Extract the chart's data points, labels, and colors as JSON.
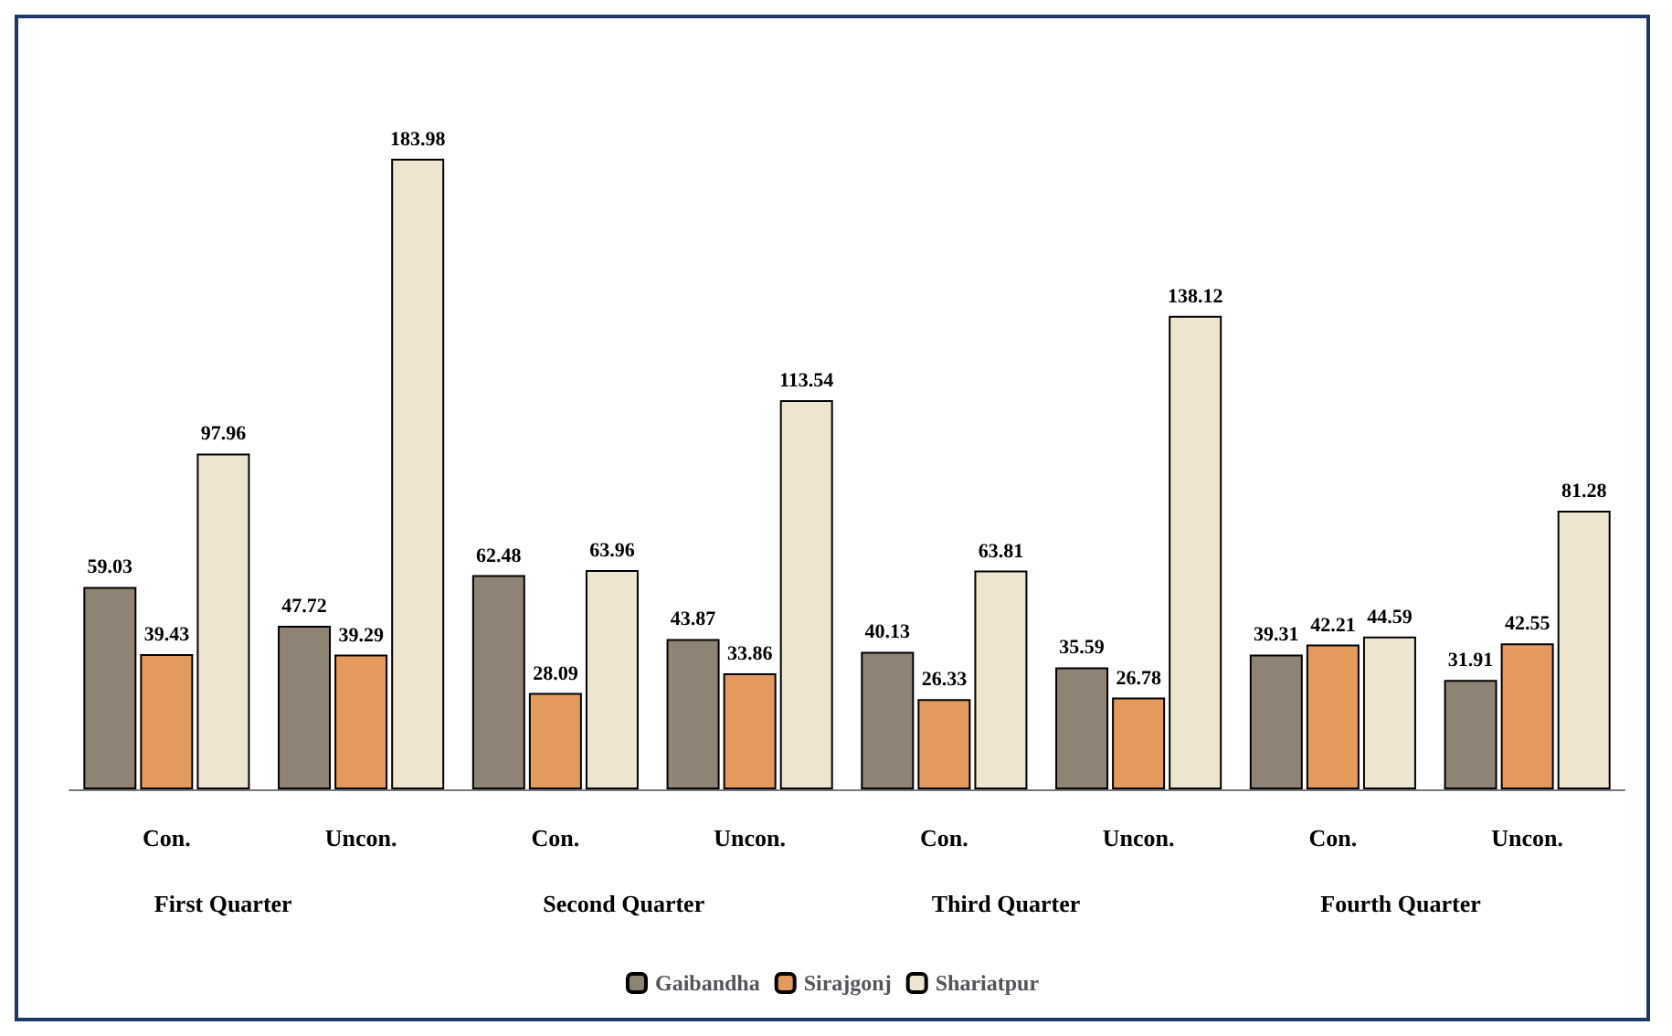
{
  "chart_data": {
    "type": "bar",
    "categories": [
      "Con.",
      "Uncon.",
      "Con.",
      "Uncon.",
      "Con.",
      "Uncon.",
      "Con.",
      "Uncon."
    ],
    "series": [
      {
        "name": "Gaibandha",
        "color": "#8e8374",
        "values": [
          59.03,
          47.72,
          62.48,
          43.87,
          40.13,
          35.59,
          39.31,
          31.91
        ]
      },
      {
        "name": "Sirajgonj",
        "color": "#e39a5c",
        "values": [
          39.43,
          39.29,
          28.09,
          33.86,
          26.33,
          26.78,
          42.21,
          42.55
        ]
      },
      {
        "name": "Shariatpur",
        "color": "#ede5cf",
        "values": [
          97.96,
          183.98,
          63.96,
          113.54,
          63.81,
          138.12,
          44.59,
          81.28
        ]
      }
    ],
    "annotations": [
      "First Quarter",
      "Second Quarter",
      "Third Quarter",
      "Fourth Quarter"
    ],
    "data_labels": true,
    "tick_labels": "x",
    "legend": "bottom"
  }
}
